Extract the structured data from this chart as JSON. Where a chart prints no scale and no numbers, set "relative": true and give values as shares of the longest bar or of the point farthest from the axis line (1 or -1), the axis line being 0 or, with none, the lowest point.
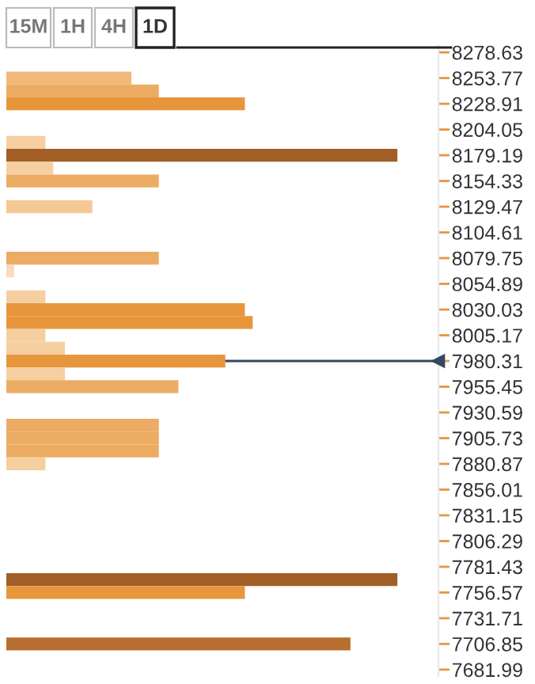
{
  "chart_data": {
    "type": "bar",
    "orientation": "horizontal",
    "relative": true,
    "annotations": [
      "15M",
      "1H",
      "4H",
      "1D"
    ],
    "x": [
      8253.77,
      8241.34,
      8228.91,
      8191.62,
      8179.19,
      8166.76,
      8154.33,
      8129.47,
      8079.75,
      8067.32,
      8042.46,
      8030.03,
      8017.6,
      8005.17,
      7992.74,
      7980.31,
      7967.88,
      7955.45,
      7918.16,
      7905.73,
      7893.3,
      7880.87,
      7769.0,
      7756.57,
      7706.85
    ],
    "values": [
      0.32,
      0.39,
      0.61,
      0.1,
      1,
      0.12,
      0.39,
      0.22,
      0.39,
      0.02,
      0.1,
      0.61,
      0.63,
      0.1,
      0.15,
      0.56,
      0.15,
      0.44,
      0.39,
      0.39,
      0.39,
      0.1,
      1,
      0.61,
      0.88
    ],
    "colors": [
      "#efb97a",
      "#ecac64",
      "#e8963c",
      "#f5cfa0",
      "#a15f27",
      "#f5cfa0",
      "#ecac64",
      "#f5c896",
      "#ecac64",
      "#f8dcc0",
      "#f5cfa0",
      "#e8963c",
      "#e8963c",
      "#f5cfa0",
      "#f5cfa0",
      "#e8963c",
      "#f5cfa0",
      "#ecac64",
      "#ecac64",
      "#ecac64",
      "#ecac64",
      "#f5cfa0",
      "#a15f27",
      "#e8963c",
      "#b76e2e"
    ],
    "ylim": [
      7675.78,
      8284.85
    ],
    "yticks": [
      {
        "value": 8278.63,
        "label": "8278.63"
      },
      {
        "value": 8253.77,
        "label": "8253.77"
      },
      {
        "value": 8228.91,
        "label": "8228.91"
      },
      {
        "value": 8204.05,
        "label": "8204.05"
      },
      {
        "value": 8179.19,
        "label": "8179.19"
      },
      {
        "value": 8154.33,
        "label": "8154.33"
      },
      {
        "value": 8129.47,
        "label": "8129.47"
      },
      {
        "value": 8104.61,
        "label": "8104.61"
      },
      {
        "value": 8079.75,
        "label": "8079.75"
      },
      {
        "value": 8054.89,
        "label": "8054.89"
      },
      {
        "value": 8030.03,
        "label": "8030.03"
      },
      {
        "value": 8005.17,
        "label": "8005.17"
      },
      {
        "value": 7980.31,
        "label": "7980.31"
      },
      {
        "value": 7955.45,
        "label": "7955.45"
      },
      {
        "value": 7930.59,
        "label": "7930.59"
      },
      {
        "value": 7905.73,
        "label": "7905.73"
      },
      {
        "value": 7880.87,
        "label": "7880.87"
      },
      {
        "value": 7856.01,
        "label": "7856.01"
      },
      {
        "value": 7831.15,
        "label": "7831.15"
      },
      {
        "value": 7806.29,
        "label": "7806.29"
      },
      {
        "value": 7781.43,
        "label": "7781.43"
      },
      {
        "value": 7756.57,
        "label": "7756.57"
      },
      {
        "value": 7731.71,
        "label": "7731.71"
      },
      {
        "value": 7706.85,
        "label": "7706.85"
      },
      {
        "value": 7681.99,
        "label": "7681.99"
      }
    ],
    "ref_lines": [
      {
        "axis": "y",
        "value": 7980.31,
        "color": "#34495e"
      }
    ],
    "grid": false,
    "legend": false
  }
}
